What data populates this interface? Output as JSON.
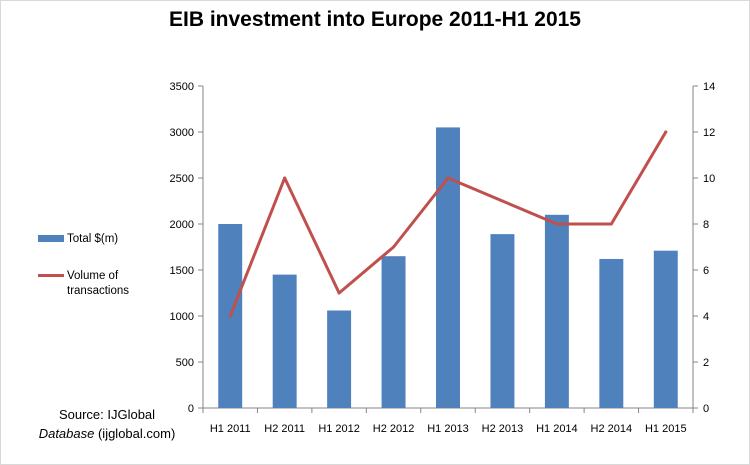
{
  "chart_data": {
    "type": "bar",
    "title": "EIB investment into Europe 2011-H1 2015",
    "categories": [
      "H1 2011",
      "H2 2011",
      "H1 2012",
      "H2 2012",
      "H1 2013",
      "H2 2013",
      "H1 2014",
      "H2 2014",
      "H1 2015"
    ],
    "series": [
      {
        "name": "Total $(m)",
        "type": "bar",
        "axis": "left",
        "color": "#4f81bd",
        "values": [
          2000,
          1450,
          1060,
          1650,
          3050,
          1890,
          2100,
          1620,
          1710
        ]
      },
      {
        "name": "Volume of transactions",
        "type": "line",
        "axis": "right",
        "color": "#c0504d",
        "values": [
          4,
          10,
          5,
          7,
          10,
          9,
          8,
          8,
          12
        ]
      }
    ],
    "y_left": {
      "min": 0,
      "max": 3500,
      "ticks": [
        0,
        500,
        1000,
        1500,
        2000,
        2500,
        3000,
        3500
      ]
    },
    "y_right": {
      "min": 0,
      "max": 14,
      "ticks": [
        0,
        2,
        4,
        6,
        8,
        10,
        12,
        14
      ]
    },
    "legend_position": "left",
    "grid": false
  },
  "legend": {
    "bar_label": "Total $(m)",
    "line_label": "Volume of transactions"
  },
  "source": {
    "prefix": "Source: IJGlobal",
    "italic": "Database",
    "suffix": " (ijglobal.com)"
  }
}
